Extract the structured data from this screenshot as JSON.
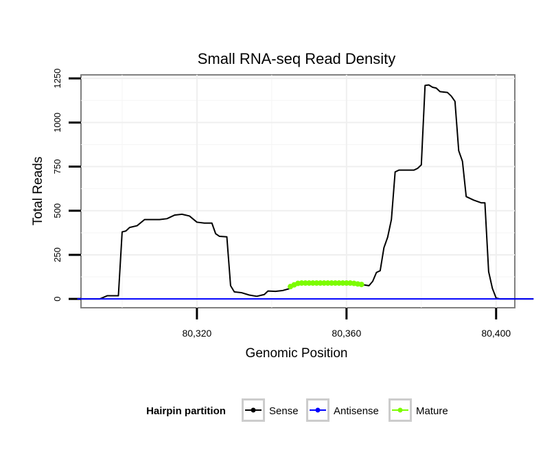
{
  "chart_data": {
    "type": "line",
    "title": "Small RNA-seq Read Density",
    "xlabel": "Genomic Position",
    "ylabel": "Total Reads",
    "xlim": [
      80289,
      80405
    ],
    "ylim": [
      -50,
      1270
    ],
    "x_ticks": [
      80320,
      80360,
      80400
    ],
    "x_tick_labels": [
      "80,320",
      "80,360",
      "80,400"
    ],
    "y_ticks": [
      0,
      250,
      500,
      750,
      1000,
      1250
    ],
    "y_tick_labels": [
      "0",
      "250",
      "500",
      "750",
      "1000",
      "1250"
    ],
    "grid": true,
    "legend": {
      "title": "Hairpin partition",
      "position": "bottom",
      "entries": [
        "Sense",
        "Antisense",
        "Mature"
      ]
    },
    "series": [
      {
        "name": "Sense",
        "color": "#000000",
        "points": [
          [
            80287,
            0
          ],
          [
            80294,
            0
          ],
          [
            80296,
            18
          ],
          [
            80299,
            18
          ],
          [
            80300,
            380
          ],
          [
            80301,
            385
          ],
          [
            80302,
            405
          ],
          [
            80304,
            415
          ],
          [
            80306,
            450
          ],
          [
            80310,
            450
          ],
          [
            80312,
            455
          ],
          [
            80314,
            475
          ],
          [
            80316,
            480
          ],
          [
            80318,
            470
          ],
          [
            80320,
            435
          ],
          [
            80322,
            430
          ],
          [
            80324,
            430
          ],
          [
            80325,
            370
          ],
          [
            80326,
            355
          ],
          [
            80328,
            352
          ],
          [
            80329,
            75
          ],
          [
            80330,
            40
          ],
          [
            80332,
            35
          ],
          [
            80334,
            22
          ],
          [
            80336,
            15
          ],
          [
            80338,
            25
          ],
          [
            80339,
            45
          ],
          [
            80341,
            43
          ],
          [
            80343,
            48
          ],
          [
            80345,
            60
          ],
          [
            80346,
            75
          ],
          [
            80348,
            85
          ],
          [
            80350,
            88
          ],
          [
            80360,
            88
          ],
          [
            80364,
            82
          ],
          [
            80366,
            75
          ],
          [
            80367,
            100
          ],
          [
            80368,
            150
          ],
          [
            80369,
            160
          ],
          [
            80370,
            290
          ],
          [
            80371,
            350
          ],
          [
            80372,
            450
          ],
          [
            80373,
            720
          ],
          [
            80374,
            730
          ],
          [
            80376,
            730
          ],
          [
            80378,
            730
          ],
          [
            80379,
            740
          ],
          [
            80380,
            760
          ],
          [
            80381,
            1210
          ],
          [
            80382,
            1213
          ],
          [
            80383,
            1200
          ],
          [
            80384,
            1195
          ],
          [
            80385,
            1175
          ],
          [
            80387,
            1170
          ],
          [
            80388,
            1150
          ],
          [
            80389,
            1120
          ],
          [
            80390,
            840
          ],
          [
            80391,
            780
          ],
          [
            80392,
            580
          ],
          [
            80394,
            560
          ],
          [
            80396,
            545
          ],
          [
            80397,
            545
          ],
          [
            80398,
            155
          ],
          [
            80399,
            60
          ],
          [
            80400,
            5
          ],
          [
            80401,
            0
          ],
          [
            80410,
            0
          ]
        ]
      },
      {
        "name": "Antisense",
        "color": "#0000ff",
        "points": [
          [
            80288,
            0
          ],
          [
            80410,
            0
          ]
        ]
      },
      {
        "name": "Mature",
        "color": "#7cfc00",
        "points": [
          [
            80345,
            70
          ],
          [
            80346,
            80
          ],
          [
            80347,
            88
          ],
          [
            80348,
            90
          ],
          [
            80349,
            90
          ],
          [
            80350,
            90
          ],
          [
            80351,
            90
          ],
          [
            80352,
            90
          ],
          [
            80353,
            90
          ],
          [
            80354,
            90
          ],
          [
            80355,
            90
          ],
          [
            80356,
            90
          ],
          [
            80357,
            90
          ],
          [
            80358,
            90
          ],
          [
            80359,
            90
          ],
          [
            80360,
            90
          ],
          [
            80361,
            90
          ],
          [
            80362,
            88
          ],
          [
            80363,
            85
          ],
          [
            80364,
            82
          ]
        ]
      }
    ]
  }
}
